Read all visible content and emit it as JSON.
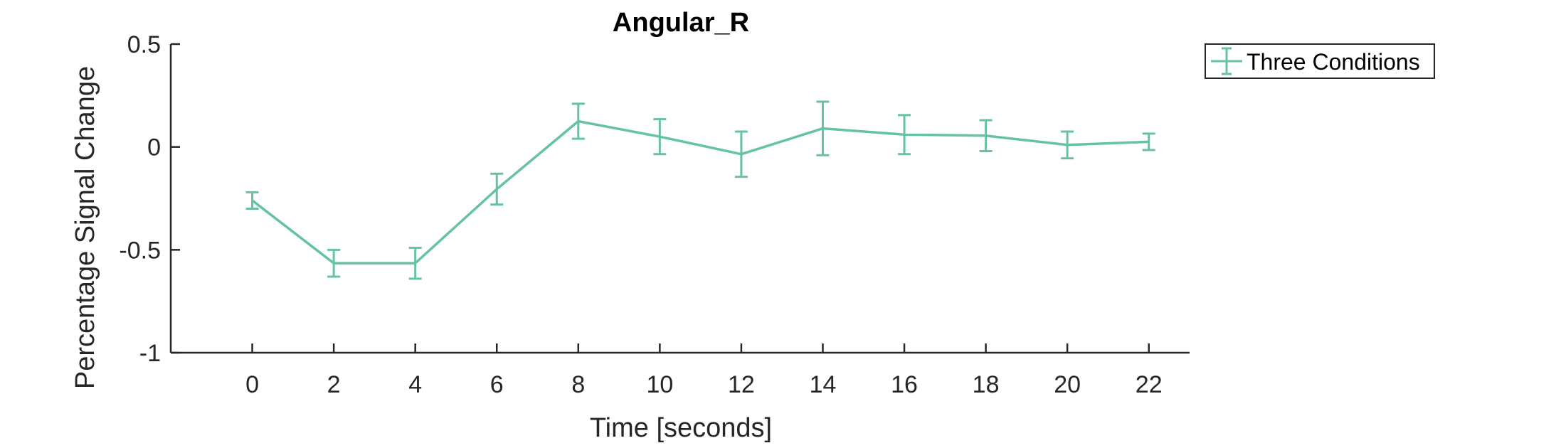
{
  "chart_data": {
    "type": "line",
    "title": "Angular_R",
    "xlabel": "Time [seconds]",
    "ylabel": "Percentage Signal Change",
    "xlim": [
      -2,
      23
    ],
    "ylim": [
      -1,
      0.5
    ],
    "xticks": [
      0,
      2,
      4,
      6,
      8,
      10,
      12,
      14,
      16,
      18,
      20,
      22
    ],
    "yticks": [
      -1,
      -0.5,
      0,
      0.5
    ],
    "xtick_labels": [
      "0",
      "2",
      "4",
      "6",
      "8",
      "10",
      "12",
      "14",
      "16",
      "18",
      "20",
      "22"
    ],
    "ytick_labels": [
      "-1",
      "-0.5",
      "0",
      "0.5"
    ],
    "grid": false,
    "legend_position": "outside-top-right",
    "series": [
      {
        "name": "Three Conditions",
        "color": "#66c2a5",
        "x": [
          0,
          2,
          4,
          6,
          8,
          10,
          12,
          14,
          16,
          18,
          20,
          22
        ],
        "y": [
          -0.26,
          -0.565,
          -0.565,
          -0.205,
          0.125,
          0.05,
          -0.035,
          0.09,
          0.06,
          0.055,
          0.01,
          0.025
        ],
        "error": [
          0.04,
          0.065,
          0.075,
          0.075,
          0.085,
          0.085,
          0.11,
          0.13,
          0.095,
          0.075,
          0.065,
          0.04
        ]
      }
    ]
  }
}
